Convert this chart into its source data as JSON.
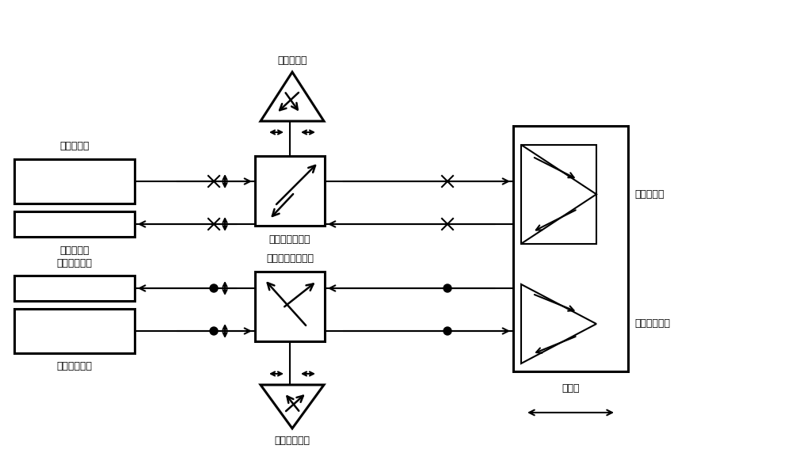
{
  "bg_color": "#ffffff",
  "labels": {
    "std_laser": "标准激光器",
    "std_receiver": "标准接收器",
    "std_pbs": "标准偏振分光镜",
    "std_ref": "标准参考镜",
    "std_meas": "标准测量镜",
    "cal_laser": "被校准激光器",
    "cal_receiver": "被校准接收器",
    "cal_pbs": "被校准偏振分光镜",
    "cal_ref": "被校准参考镜",
    "cal_meas": "被校准测量镜",
    "motion": "运动台"
  },
  "lw": 1.5,
  "blw": 2.2
}
